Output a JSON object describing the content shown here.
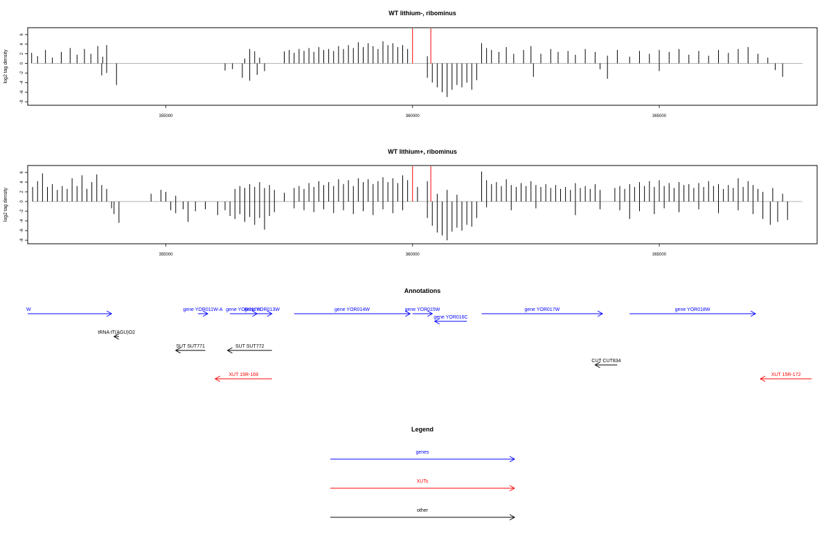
{
  "chart_data": [
    {
      "type": "bar",
      "title": "WT lithium-, ribominus",
      "ylabel": "log2 tag density",
      "xlim": [
        352200,
        368200
      ],
      "ylim": [
        -8,
        7
      ],
      "y_ticks": [
        6,
        4,
        2,
        0,
        -2,
        -4,
        -6,
        -8
      ],
      "x_ticks": [
        355000,
        360000,
        365000
      ],
      "markers": {
        "color": "#ff0000",
        "x": [
          360000,
          360370
        ]
      },
      "forward_color": "#000000",
      "reverse_color": "#000000",
      "forward": [
        [
          352280,
          2.2
        ],
        [
          352400,
          1.5
        ],
        [
          352560,
          2.8
        ],
        [
          352700,
          1.2
        ],
        [
          352880,
          2.4
        ],
        [
          353060,
          3.2
        ],
        [
          353200,
          1.8
        ],
        [
          353350,
          3.0
        ],
        [
          353480,
          2.0
        ],
        [
          353620,
          3.6
        ],
        [
          353720,
          1.4
        ],
        [
          353800,
          3.8
        ],
        [
          356600,
          1.0
        ],
        [
          356700,
          3.0
        ],
        [
          356800,
          2.5
        ],
        [
          356900,
          1.2
        ],
        [
          357400,
          2.5
        ],
        [
          357500,
          2.8
        ],
        [
          357600,
          2.2
        ],
        [
          357700,
          3.0
        ],
        [
          357800,
          2.6
        ],
        [
          357900,
          3.2
        ],
        [
          358000,
          2.4
        ],
        [
          358100,
          3.4
        ],
        [
          358200,
          2.8
        ],
        [
          358300,
          3.0
        ],
        [
          358400,
          2.6
        ],
        [
          358500,
          3.6
        ],
        [
          358600,
          3.0
        ],
        [
          358700,
          3.8
        ],
        [
          358800,
          3.2
        ],
        [
          358900,
          4.4
        ],
        [
          359000,
          3.4
        ],
        [
          359100,
          4.2
        ],
        [
          359200,
          3.6
        ],
        [
          359300,
          3.0
        ],
        [
          359400,
          4.6
        ],
        [
          359500,
          3.8
        ],
        [
          359600,
          4.2
        ],
        [
          359700,
          3.4
        ],
        [
          359800,
          3.8
        ],
        [
          359900,
          3.0
        ],
        [
          360300,
          1.5
        ],
        [
          361400,
          4.2
        ],
        [
          361500,
          3.2
        ],
        [
          361600,
          2.8
        ],
        [
          361750,
          2.4
        ],
        [
          361900,
          3.4
        ],
        [
          362050,
          2.0
        ],
        [
          362250,
          2.8
        ],
        [
          362400,
          3.6
        ],
        [
          362600,
          2.0
        ],
        [
          362800,
          3.0
        ],
        [
          362950,
          2.4
        ],
        [
          363150,
          2.6
        ],
        [
          363300,
          1.8
        ],
        [
          363500,
          3.0
        ],
        [
          363700,
          2.4
        ],
        [
          363950,
          1.6
        ],
        [
          364150,
          2.8
        ],
        [
          364400,
          1.4
        ],
        [
          364600,
          2.6
        ],
        [
          364800,
          2.0
        ],
        [
          365000,
          2.8
        ],
        [
          365200,
          2.4
        ],
        [
          365400,
          3.0
        ],
        [
          365600,
          1.8
        ],
        [
          365800,
          2.6
        ],
        [
          366000,
          1.6
        ],
        [
          366200,
          2.8
        ],
        [
          366400,
          2.2
        ],
        [
          366600,
          3.0
        ],
        [
          366800,
          3.4
        ],
        [
          367000,
          2.0
        ],
        [
          367200,
          1.2
        ]
      ],
      "reverse": [
        [
          353800,
          -2.0
        ],
        [
          353700,
          -2.5
        ],
        [
          354000,
          -4.5
        ],
        [
          356200,
          -1.5
        ],
        [
          356350,
          -1.2
        ],
        [
          356550,
          -3.0
        ],
        [
          356700,
          -3.6
        ],
        [
          356850,
          -2.4
        ],
        [
          357000,
          -1.6
        ],
        [
          360300,
          -3.0
        ],
        [
          360400,
          -4.0
        ],
        [
          360500,
          -5.0
        ],
        [
          360600,
          -6.0
        ],
        [
          360700,
          -7.0
        ],
        [
          360800,
          -5.5
        ],
        [
          360900,
          -4.5
        ],
        [
          361000,
          -5.0
        ],
        [
          361100,
          -4.0
        ],
        [
          361200,
          -5.5
        ],
        [
          361300,
          -3.5
        ],
        [
          362450,
          -2.8
        ],
        [
          363800,
          -1.2
        ],
        [
          363950,
          -3.2
        ],
        [
          365000,
          -1.6
        ],
        [
          367350,
          -1.4
        ],
        [
          367500,
          -2.8
        ]
      ]
    },
    {
      "type": "bar",
      "title": "WT lithium+, ribominus",
      "ylabel": "log2 tag density",
      "xlim": [
        352200,
        368200
      ],
      "ylim": [
        -8,
        7
      ],
      "y_ticks": [
        6,
        4,
        2,
        0,
        -2,
        -4,
        -6,
        -8
      ],
      "x_ticks": [
        355000,
        360000,
        365000
      ],
      "markers": {
        "color": "#ff0000",
        "x": [
          360000,
          360370
        ]
      },
      "forward_color": "#000000",
      "reverse_color": "#000000",
      "forward": [
        [
          352300,
          3.0
        ],
        [
          352400,
          4.2
        ],
        [
          352500,
          5.8
        ],
        [
          352600,
          3.0
        ],
        [
          352700,
          3.6
        ],
        [
          352800,
          2.4
        ],
        [
          352900,
          3.2
        ],
        [
          353000,
          2.6
        ],
        [
          353100,
          4.8
        ],
        [
          353200,
          3.2
        ],
        [
          353300,
          5.4
        ],
        [
          353400,
          2.6
        ],
        [
          353500,
          4.0
        ],
        [
          353600,
          5.6
        ],
        [
          353700,
          3.4
        ],
        [
          353800,
          2.6
        ],
        [
          354700,
          1.6
        ],
        [
          354900,
          2.4
        ],
        [
          355000,
          2.0
        ],
        [
          355200,
          1.2
        ],
        [
          356400,
          2.6
        ],
        [
          356500,
          3.2
        ],
        [
          356600,
          2.8
        ],
        [
          356700,
          3.6
        ],
        [
          356800,
          3.0
        ],
        [
          356900,
          4.0
        ],
        [
          357000,
          2.8
        ],
        [
          357100,
          3.4
        ],
        [
          357200,
          2.4
        ],
        [
          357400,
          1.8
        ],
        [
          357600,
          2.8
        ],
        [
          357700,
          3.2
        ],
        [
          357800,
          2.6
        ],
        [
          357900,
          3.8
        ],
        [
          358000,
          3.0
        ],
        [
          358100,
          4.2
        ],
        [
          358200,
          3.4
        ],
        [
          358300,
          4.0
        ],
        [
          358400,
          3.2
        ],
        [
          358500,
          4.6
        ],
        [
          358600,
          3.6
        ],
        [
          358700,
          4.4
        ],
        [
          358800,
          3.2
        ],
        [
          358900,
          4.8
        ],
        [
          359000,
          4.0
        ],
        [
          359100,
          4.6
        ],
        [
          359200,
          3.6
        ],
        [
          359300,
          4.2
        ],
        [
          359400,
          5.0
        ],
        [
          359500,
          4.0
        ],
        [
          359600,
          4.8
        ],
        [
          359700,
          3.8
        ],
        [
          359800,
          5.4
        ],
        [
          359900,
          4.4
        ],
        [
          360100,
          3.0
        ],
        [
          360300,
          4.2
        ],
        [
          360500,
          1.6
        ],
        [
          360700,
          2.4
        ],
        [
          360900,
          1.4
        ],
        [
          361400,
          6.2
        ],
        [
          361500,
          4.4
        ],
        [
          361600,
          3.6
        ],
        [
          361700,
          4.0
        ],
        [
          361800,
          3.2
        ],
        [
          361900,
          4.6
        ],
        [
          362000,
          3.4
        ],
        [
          362100,
          3.0
        ],
        [
          362200,
          3.8
        ],
        [
          362300,
          3.2
        ],
        [
          362400,
          4.2
        ],
        [
          362500,
          3.4
        ],
        [
          362600,
          3.0
        ],
        [
          362700,
          3.6
        ],
        [
          362800,
          2.8
        ],
        [
          362900,
          3.4
        ],
        [
          363000,
          2.6
        ],
        [
          363100,
          3.0
        ],
        [
          363200,
          2.4
        ],
        [
          363300,
          3.8
        ],
        [
          363400,
          2.8
        ],
        [
          363500,
          3.2
        ],
        [
          363600,
          2.6
        ],
        [
          363700,
          3.6
        ],
        [
          363800,
          2.4
        ],
        [
          364100,
          2.8
        ],
        [
          364200,
          3.2
        ],
        [
          364300,
          2.6
        ],
        [
          364400,
          3.6
        ],
        [
          364500,
          3.0
        ],
        [
          364600,
          4.0
        ],
        [
          364700,
          3.2
        ],
        [
          364800,
          4.2
        ],
        [
          364900,
          3.0
        ],
        [
          365000,
          4.4
        ],
        [
          365100,
          3.2
        ],
        [
          365200,
          3.8
        ],
        [
          365300,
          2.8
        ],
        [
          365400,
          4.0
        ],
        [
          365500,
          3.4
        ],
        [
          365600,
          3.6
        ],
        [
          365700,
          2.8
        ],
        [
          365800,
          3.8
        ],
        [
          365900,
          3.0
        ],
        [
          366000,
          4.2
        ],
        [
          366100,
          3.2
        ],
        [
          366200,
          3.6
        ],
        [
          366300,
          2.6
        ],
        [
          366400,
          3.4
        ],
        [
          366500,
          2.8
        ],
        [
          366600,
          4.8
        ],
        [
          366700,
          3.0
        ],
        [
          366800,
          4.2
        ],
        [
          366900,
          3.4
        ],
        [
          367000,
          2.6
        ],
        [
          367100,
          2.0
        ],
        [
          367300,
          2.8
        ],
        [
          367500,
          1.6
        ]
      ],
      "reverse": [
        [
          353900,
          -1.4
        ],
        [
          354050,
          -4.4
        ],
        [
          353950,
          -2.6
        ],
        [
          355100,
          -1.8
        ],
        [
          355200,
          -2.4
        ],
        [
          355350,
          -1.6
        ],
        [
          355450,
          -4.2
        ],
        [
          355600,
          -2.0
        ],
        [
          355800,
          -1.6
        ],
        [
          356050,
          -2.8
        ],
        [
          356200,
          -1.8
        ],
        [
          356300,
          -3.0
        ],
        [
          356400,
          -3.6
        ],
        [
          356500,
          -2.6
        ],
        [
          356600,
          -4.2
        ],
        [
          356700,
          -3.2
        ],
        [
          356800,
          -4.8
        ],
        [
          356900,
          -3.4
        ],
        [
          357000,
          -5.8
        ],
        [
          357100,
          -3.0
        ],
        [
          357200,
          -2.2
        ],
        [
          357600,
          -1.4
        ],
        [
          357800,
          -1.8
        ],
        [
          358000,
          -2.2
        ],
        [
          358200,
          -1.6
        ],
        [
          358400,
          -2.4
        ],
        [
          358600,
          -1.8
        ],
        [
          358800,
          -2.6
        ],
        [
          359000,
          -2.0
        ],
        [
          359200,
          -2.8
        ],
        [
          359400,
          -1.6
        ],
        [
          359600,
          -2.4
        ],
        [
          359800,
          -1.8
        ],
        [
          360300,
          -3.4
        ],
        [
          360400,
          -5.0
        ],
        [
          360500,
          -6.4
        ],
        [
          360600,
          -7.0
        ],
        [
          360700,
          -8.0
        ],
        [
          360800,
          -6.2
        ],
        [
          360900,
          -5.4
        ],
        [
          361000,
          -6.0
        ],
        [
          361100,
          -4.8
        ],
        [
          361200,
          -5.2
        ],
        [
          361300,
          -3.4
        ],
        [
          361500,
          -1.2
        ],
        [
          362000,
          -1.8
        ],
        [
          362500,
          -1.4
        ],
        [
          363300,
          -2.8
        ],
        [
          363800,
          -1.6
        ],
        [
          364200,
          -1.8
        ],
        [
          364400,
          -3.6
        ],
        [
          364600,
          -2.0
        ],
        [
          364900,
          -2.6
        ],
        [
          365100,
          -1.4
        ],
        [
          365400,
          -2.2
        ],
        [
          365800,
          -1.6
        ],
        [
          366200,
          -2.4
        ],
        [
          366600,
          -1.8
        ],
        [
          366900,
          -2.6
        ],
        [
          367100,
          -3.6
        ],
        [
          367250,
          -4.8
        ],
        [
          367400,
          -4.2
        ],
        [
          367600,
          -3.8
        ]
      ]
    }
  ],
  "annotations": {
    "title": "Annotations",
    "features": [
      {
        "label": "W",
        "strand": "+",
        "start": 352200,
        "end": 353900,
        "row": 0,
        "color": "#0000ff"
      },
      {
        "label": "gene YOR011W-A",
        "strand": "+",
        "start": 355650,
        "end": 355850,
        "row": 0,
        "color": "#0000ff"
      },
      {
        "label": "gene YOR012W",
        "strand": "+",
        "start": 356300,
        "end": 356850,
        "row": 0,
        "color": "#0000ff"
      },
      {
        "label": "gene YOR013W",
        "strand": "+",
        "start": 356750,
        "end": 357150,
        "row": 0,
        "color": "#0000ff"
      },
      {
        "label": "gene YOR014W",
        "strand": "+",
        "start": 357600,
        "end": 359950,
        "row": 0,
        "color": "#0000ff"
      },
      {
        "label": "gene YOR015W",
        "strand": "+",
        "start": 360000,
        "end": 360400,
        "row": 0,
        "color": "#0000ff"
      },
      {
        "label": "gene YOR016C",
        "strand": "-",
        "start": 360450,
        "end": 361100,
        "row": 1,
        "color": "#0000ff"
      },
      {
        "label": "gene YOR017W",
        "strand": "+",
        "start": 361400,
        "end": 363850,
        "row": 0,
        "color": "#0000ff"
      },
      {
        "label": "gene YOR018W",
        "strand": "+",
        "start": 364400,
        "end": 366950,
        "row": 0,
        "color": "#0000ff"
      },
      {
        "label": "tRNA tT(AGU)O2",
        "strand": "-",
        "start": 353950,
        "end": 354050,
        "row": 2,
        "color": "#000000"
      },
      {
        "label": "SUT SUT771",
        "strand": "-",
        "start": 355200,
        "end": 355800,
        "row": 3,
        "color": "#000000"
      },
      {
        "label": "SUT SUT772",
        "strand": "-",
        "start": 356250,
        "end": 357150,
        "row": 3,
        "color": "#000000"
      },
      {
        "label": "CUT CUT834",
        "strand": "-",
        "start": 363700,
        "end": 364150,
        "row": 4,
        "color": "#000000"
      },
      {
        "label": "XUT 15R-169",
        "strand": "-",
        "start": 356000,
        "end": 357150,
        "row": 5,
        "color": "#ff0000"
      },
      {
        "label": "XUT 15R-172",
        "strand": "-",
        "start": 367050,
        "end": 368150,
        "row": 5,
        "color": "#ff0000"
      }
    ]
  },
  "legend": {
    "title": "Legend",
    "items": [
      {
        "label": "genes",
        "color": "#0000ff"
      },
      {
        "label": "XUTs",
        "color": "#ff0000"
      },
      {
        "label": "other",
        "color": "#000000"
      }
    ]
  }
}
